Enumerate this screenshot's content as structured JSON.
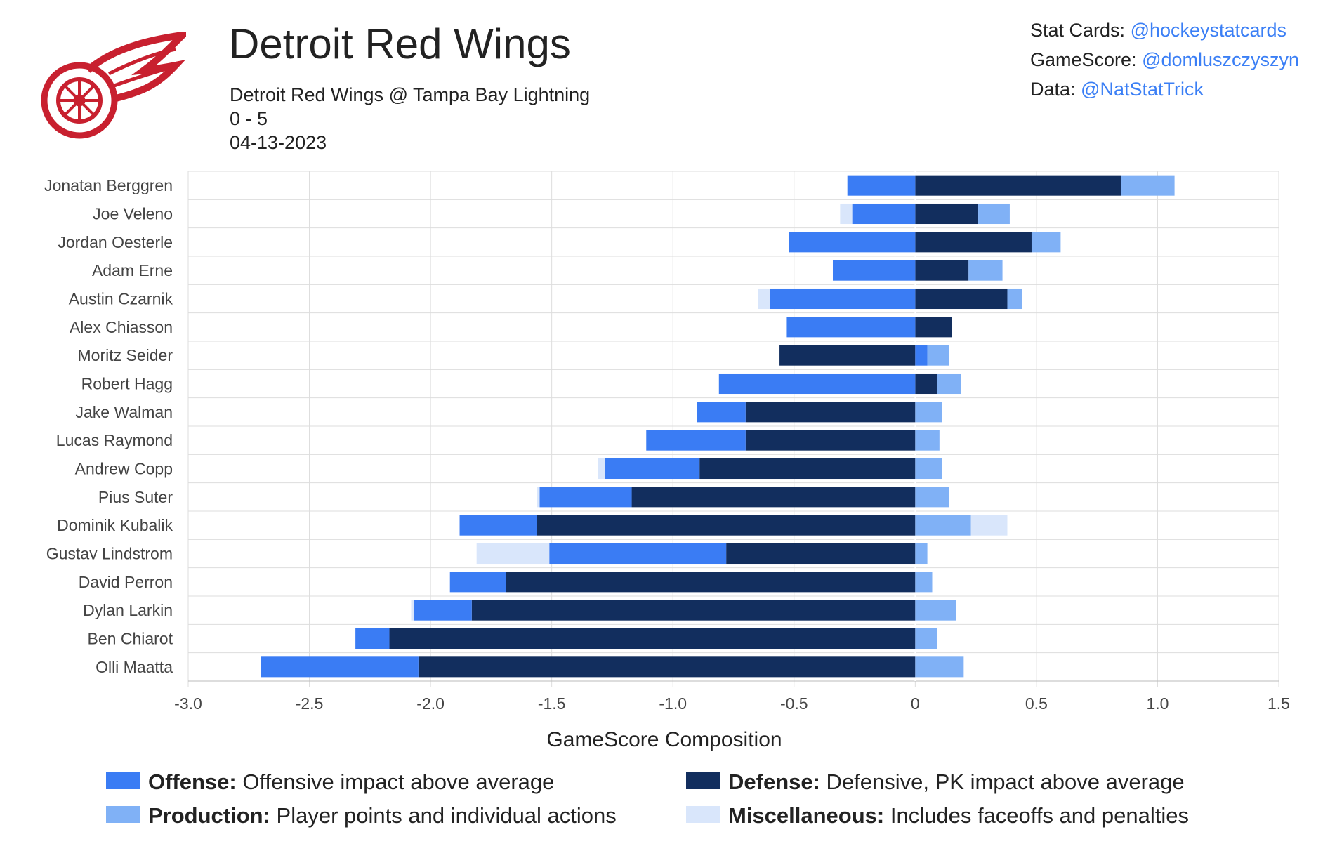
{
  "header": {
    "title": "Detroit Red Wings",
    "matchup": "Detroit Red Wings @ Tampa Bay Lightning",
    "score": "0 - 5",
    "date": "04-13-2023"
  },
  "credits": [
    {
      "label": "Stat Cards: ",
      "handle": "@hockeystatcards"
    },
    {
      "label": "GameScore: ",
      "handle": "@domluszczyszyn"
    },
    {
      "label": "Data: ",
      "handle": "@NatStatTrick"
    }
  ],
  "colors": {
    "offense": "#3a7cf4",
    "defense": "#122e5e",
    "production": "#80b1f6",
    "misc": "#d9e6fb"
  },
  "legend": [
    {
      "key": "offense",
      "name": "Offense:",
      "desc": " Offensive impact above average"
    },
    {
      "key": "defense",
      "name": "Defense:",
      "desc": " Defensive, PK impact above average"
    },
    {
      "key": "production",
      "name": "Production:",
      "desc": " Player points and individual actions"
    },
    {
      "key": "misc",
      "name": "Miscellaneous:",
      "desc": " Includes faceoffs and penalties"
    }
  ],
  "chart_data": {
    "type": "bar",
    "orientation": "horizontal-stacked-diverging",
    "xlabel": "GameScore Composition",
    "xlim": [
      -3.0,
      1.5
    ],
    "xticks": [
      "-3.0",
      "-2.5",
      "-2.0",
      "-1.5",
      "-1.0",
      "-0.5",
      "0",
      "0.5",
      "1.0",
      "1.5"
    ],
    "grid": true,
    "legend_position": "bottom",
    "players": [
      {
        "name": "Jonatan Berggren",
        "offense": -0.28,
        "defense": 0.85,
        "production": 0.22,
        "misc": 0
      },
      {
        "name": "Joe Veleno",
        "offense": -0.26,
        "defense": 0.26,
        "production": 0.13,
        "misc": -0.05
      },
      {
        "name": "Jordan Oesterle",
        "offense": -0.52,
        "defense": 0.48,
        "production": 0.12,
        "misc": 0
      },
      {
        "name": "Adam Erne",
        "offense": -0.34,
        "defense": 0.22,
        "production": 0.14,
        "misc": 0
      },
      {
        "name": "Austin Czarnik",
        "offense": -0.6,
        "defense": 0.38,
        "production": 0.06,
        "misc": -0.05
      },
      {
        "name": "Alex Chiasson",
        "offense": -0.53,
        "defense": 0.15,
        "production": 0,
        "misc": 0
      },
      {
        "name": "Moritz Seider",
        "offense": 0.05,
        "defense": -0.56,
        "production": 0.09,
        "misc": 0
      },
      {
        "name": "Robert Hagg",
        "offense": -0.81,
        "defense": 0.09,
        "production": 0.1,
        "misc": 0
      },
      {
        "name": "Jake Walman",
        "offense": -0.2,
        "defense": -0.7,
        "production": 0.11,
        "misc": 0
      },
      {
        "name": "Lucas Raymond",
        "offense": -0.41,
        "defense": -0.7,
        "production": 0.1,
        "misc": 0
      },
      {
        "name": "Andrew Copp",
        "offense": -0.39,
        "defense": -0.89,
        "production": 0.11,
        "misc": -0.03
      },
      {
        "name": "Pius Suter",
        "offense": -0.38,
        "defense": -1.17,
        "production": 0.14,
        "misc": -0.01
      },
      {
        "name": "Dominik Kubalik",
        "offense": -0.32,
        "defense": -1.56,
        "production": 0.23,
        "misc": 0.15
      },
      {
        "name": "Gustav Lindstrom",
        "offense": -0.73,
        "defense": -0.78,
        "production": 0.05,
        "misc": -0.3
      },
      {
        "name": "David Perron",
        "offense": -0.23,
        "defense": -1.69,
        "production": 0.07,
        "misc": 0
      },
      {
        "name": "Dylan Larkin",
        "offense": -0.24,
        "defense": -1.83,
        "production": 0.17,
        "misc": -0.01
      },
      {
        "name": "Ben Chiarot",
        "offense": -0.14,
        "defense": -2.17,
        "production": 0.09,
        "misc": 0
      },
      {
        "name": "Olli Maatta",
        "offense": -0.65,
        "defense": -2.05,
        "production": 0.2,
        "misc": 0
      }
    ]
  }
}
